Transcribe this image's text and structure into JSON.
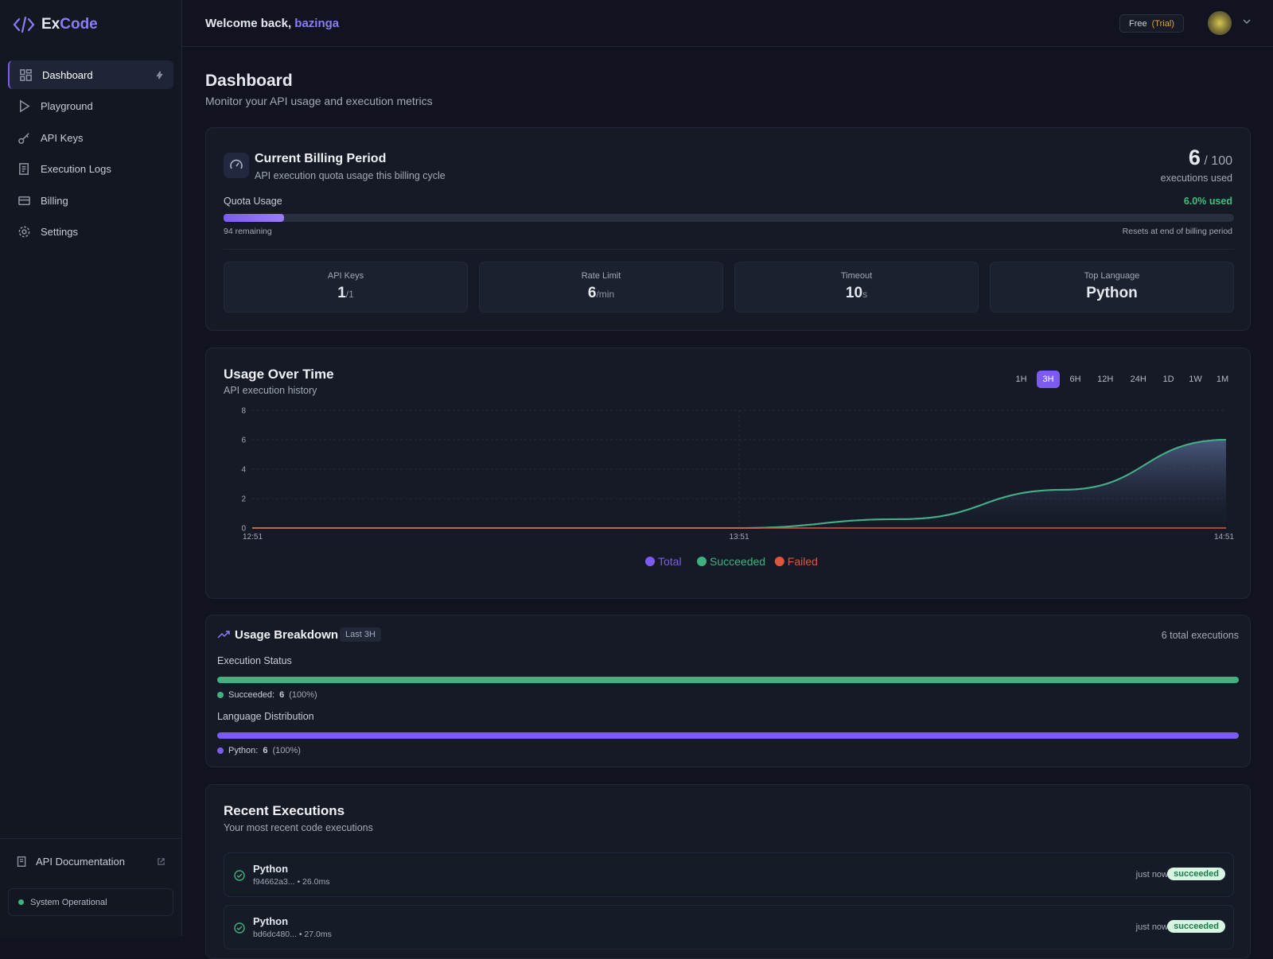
{
  "sidebar": {
    "brand_prefix": "Ex",
    "brand_suffix": "Code",
    "nav": [
      {
        "label": "Dashboard",
        "active": true
      },
      {
        "label": "Playground",
        "active": false
      },
      {
        "label": "API Keys",
        "active": false
      },
      {
        "label": "Execution Logs",
        "active": false
      },
      {
        "label": "Billing",
        "active": false
      },
      {
        "label": "Settings",
        "active": false
      }
    ],
    "api_docs": "API Documentation",
    "status": "System Operational"
  },
  "header": {
    "welcome": "Welcome back,",
    "user": "bazinga",
    "plan": "Free",
    "plan_note": "(Trial)"
  },
  "page": {
    "title": "Dashboard",
    "subtitle": "Monitor your API usage and execution metrics"
  },
  "billing": {
    "title": "Current Billing Period",
    "subtitle": "API execution quota usage this billing cycle",
    "used": "6",
    "quota": "/ 100",
    "used_caption": "executions used",
    "quota_label": "Quota Usage",
    "percent": {
      "value": 6,
      "label": "6.0% used"
    },
    "remaining": "94 remaining",
    "reset": "Resets at end of billing period",
    "stats": [
      {
        "label": "API Keys",
        "value": "1",
        "unit": "/1"
      },
      {
        "label": "Rate Limit",
        "value": "6",
        "unit": "/min"
      },
      {
        "label": "Timeout",
        "value": "10",
        "unit": "s"
      },
      {
        "label": "Top Language",
        "value": "Python"
      }
    ]
  },
  "usage": {
    "title": "Usage Over Time",
    "subtitle": "API execution history",
    "ranges": [
      "1H",
      "3H",
      "6H",
      "12H",
      "24H",
      "1D",
      "1W",
      "1M"
    ],
    "active_range": 1
  },
  "chart_data": {
    "type": "area",
    "x": [
      "12:51",
      null,
      null,
      "13:51",
      null,
      null,
      "14:51"
    ],
    "series": [
      {
        "name": "Total",
        "color": "#7c5cf0",
        "values": [
          0,
          0,
          0,
          0,
          0.6,
          2.6,
          6
        ]
      },
      {
        "name": "Succeeded",
        "color": "#3fb27f",
        "values": [
          0,
          0,
          0,
          0,
          0.6,
          2.6,
          6
        ]
      },
      {
        "name": "Failed",
        "color": "#e0553f",
        "values": [
          0,
          0,
          0,
          0,
          0,
          0,
          0
        ]
      }
    ],
    "ylim": [
      0,
      8
    ],
    "yticks": [
      0,
      2,
      4,
      6,
      8
    ],
    "grid": true
  },
  "breakdown": {
    "title": "Usage Breakdown",
    "badge": "Last 3H",
    "total": "6 total executions",
    "status_title": "Execution Status",
    "status": [
      {
        "name": "Succeeded:",
        "count": 6,
        "share": {
          "value": 100,
          "label": "(100%)"
        },
        "color": "#3fb27f"
      }
    ],
    "language_title": "Language Distribution",
    "languages": [
      {
        "name": "Python:",
        "count": 6,
        "share": {
          "value": 100,
          "label": "(100%)"
        },
        "color": "#7c5cf0"
      }
    ]
  },
  "recent": {
    "title": "Recent Executions",
    "subtitle": "Your most recent code executions",
    "items": [
      {
        "language": "Python",
        "id": "f94662a3...",
        "duration": "• 26.0ms",
        "time": "just now",
        "status": "succeeded"
      },
      {
        "language": "Python",
        "id": "bd6dc480...",
        "duration": "• 27.0ms",
        "time": "just now",
        "status": "succeeded"
      }
    ]
  }
}
